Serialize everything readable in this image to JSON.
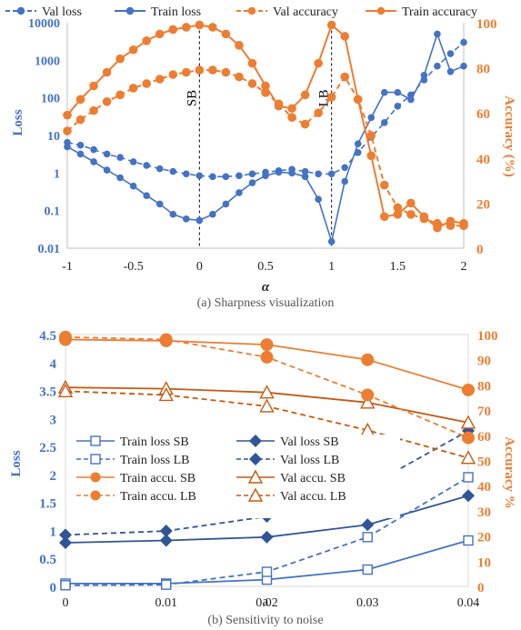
{
  "chart_data": [
    {
      "type": "line",
      "caption": "(a) Sharpness visualization",
      "xlabel": "α",
      "ylabel": "Loss",
      "y2label": "Accuracy (%)",
      "xlim": [
        -1,
        2
      ],
      "ylim": [
        0.01,
        10000
      ],
      "yscale": "log",
      "y2lim": [
        0,
        100
      ],
      "xticks": [
        "-1",
        "-0.5",
        "0",
        "0.5",
        "1",
        "1.5",
        "2"
      ],
      "yticks": [
        "0.01",
        "0.1",
        "1",
        "10",
        "100",
        "1000",
        "10000"
      ],
      "y2ticks": [
        "0",
        "20",
        "40",
        "60",
        "80",
        "100"
      ],
      "legend": [
        "Val loss",
        "Train loss",
        "Val accuracy",
        "Train accuracy"
      ],
      "legend_position": "top",
      "grid": false,
      "annotations": [
        {
          "text": "SB",
          "x": 0
        },
        {
          "text": "LB",
          "x": 1
        }
      ],
      "colors": {
        "loss": "#4472C4",
        "accuracy": "#ED7D31"
      },
      "x": [
        -1,
        -0.9,
        -0.8,
        -0.7,
        -0.6,
        -0.5,
        -0.4,
        -0.3,
        -0.2,
        -0.1,
        0,
        0.1,
        0.2,
        0.3,
        0.4,
        0.5,
        0.6,
        0.7,
        0.8,
        0.9,
        1,
        1.1,
        1.2,
        1.3,
        1.4,
        1.5,
        1.6,
        1.7,
        1.8,
        1.9,
        2
      ],
      "series": [
        {
          "name": "Val loss",
          "axis": "left",
          "dash": true,
          "values": [
            6.5,
            5.5,
            4.2,
            3.2,
            2.6,
            2.0,
            1.6,
            1.3,
            1.1,
            0.95,
            0.85,
            0.8,
            0.8,
            0.85,
            0.95,
            1.05,
            1.15,
            1.25,
            1.1,
            0.95,
            0.95,
            1.4,
            3.5,
            9,
            22,
            60,
            120,
            300,
            700,
            1500,
            3000
          ]
        },
        {
          "name": "Train loss",
          "axis": "left",
          "dash": false,
          "values": [
            5,
            3.2,
            2.0,
            1.2,
            0.75,
            0.45,
            0.25,
            0.15,
            0.08,
            0.06,
            0.055,
            0.08,
            0.15,
            0.3,
            0.55,
            0.85,
            1.05,
            1.0,
            0.8,
            0.2,
            0.015,
            0.6,
            6,
            30,
            140,
            140,
            90,
            400,
            5000,
            500,
            700
          ]
        },
        {
          "name": "Val accuracy",
          "axis": "right",
          "dash": true,
          "values": [
            52,
            57,
            61,
            65,
            68,
            71,
            73,
            75,
            77,
            78,
            79,
            79,
            78,
            76,
            73,
            69,
            64,
            58,
            55,
            60,
            67,
            76,
            66,
            50,
            28,
            18,
            15,
            13,
            11,
            10,
            10
          ]
        },
        {
          "name": "Train accuracy",
          "axis": "right",
          "dash": false,
          "values": [
            59,
            66,
            72,
            78,
            84,
            88,
            92,
            95,
            97,
            98,
            99,
            98,
            95,
            90,
            82,
            72,
            63,
            62,
            68,
            82,
            99,
            94,
            66,
            41,
            14,
            15,
            20,
            14,
            9,
            12,
            11
          ]
        }
      ]
    },
    {
      "type": "line",
      "caption": "(b) Sensitivity to noise",
      "xlabel": "a",
      "ylabel": "Loss",
      "y2label": "Accuracy %",
      "ylim": [
        0,
        4.5
      ],
      "y2lim": [
        0,
        100
      ],
      "categories": [
        "0",
        "0.01",
        "0.02",
        "0.03",
        "0.04"
      ],
      "yticks": [
        "0",
        "0.5",
        "1",
        "1.5",
        "2",
        "2.5",
        "3",
        "3.5",
        "4",
        "4.5"
      ],
      "y2ticks": [
        "0",
        "10",
        "20",
        "30",
        "40",
        "50",
        "60",
        "70",
        "80",
        "90",
        "100"
      ],
      "legend_position": "center-left",
      "grid": false,
      "series": [
        {
          "name": "Train loss SB",
          "axis": "left",
          "dash": false,
          "marker": "square-open",
          "color": "#4472C4",
          "values": [
            0.05,
            0.05,
            0.12,
            0.3,
            0.82
          ]
        },
        {
          "name": "Val loss SB",
          "axis": "left",
          "dash": false,
          "marker": "diamond",
          "color": "#2F5597",
          "values": [
            0.78,
            0.82,
            0.88,
            1.1,
            1.62
          ]
        },
        {
          "name": "Train loss LB",
          "axis": "left",
          "dash": true,
          "marker": "square-open",
          "color": "#4472C4",
          "values": [
            0.02,
            0.03,
            0.26,
            0.88,
            1.95
          ]
        },
        {
          "name": "Val loss LB",
          "axis": "left",
          "dash": true,
          "marker": "diamond",
          "color": "#2F5597",
          "values": [
            0.92,
            0.99,
            1.25,
            1.78,
            2.78
          ]
        },
        {
          "name": "Train accu. SB",
          "axis": "right",
          "dash": false,
          "marker": "circle",
          "color": "#ED7D31",
          "values": [
            98,
            97.5,
            96,
            90,
            78
          ]
        },
        {
          "name": "Val accu. SB",
          "axis": "right",
          "dash": false,
          "marker": "triangle-open",
          "color": "#C55A11",
          "values": [
            79,
            78.5,
            77,
            73,
            65
          ]
        },
        {
          "name": "Train accu. LB",
          "axis": "right",
          "dash": true,
          "marker": "circle",
          "color": "#ED7D31",
          "values": [
            99,
            98,
            91,
            76,
            59
          ]
        },
        {
          "name": "Val accu. LB",
          "axis": "right",
          "dash": true,
          "marker": "triangle-open",
          "color": "#C55A11",
          "values": [
            77.5,
            76,
            71.5,
            62,
            51
          ]
        }
      ]
    }
  ]
}
